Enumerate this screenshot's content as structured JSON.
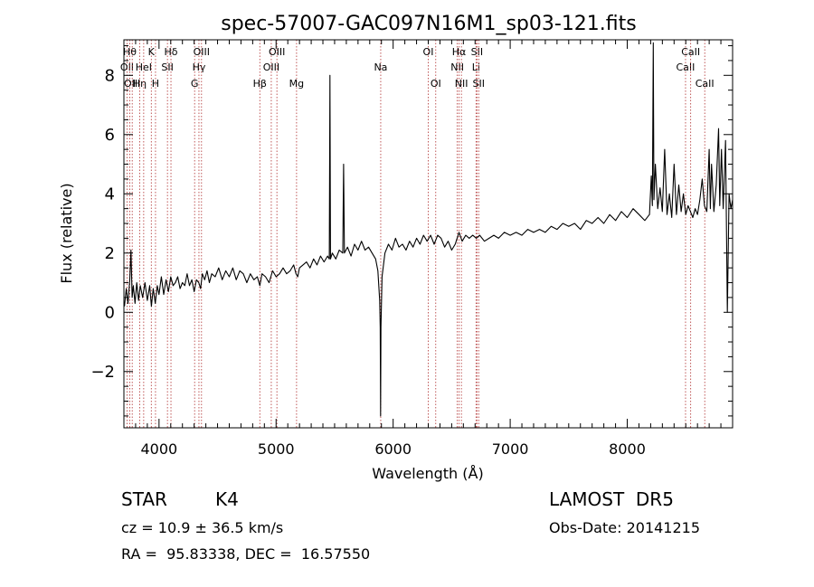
{
  "chart_data": {
    "type": "line",
    "title": "spec-57007-GAC097N16M1_sp03-121.fits",
    "xlabel": "Wavelength (Å)",
    "ylabel": "Flux (relative)",
    "xlim": [
      3700,
      8900
    ],
    "ylim": [
      -3.9,
      9.2
    ],
    "x_ticks": [
      4000,
      5000,
      6000,
      7000,
      8000
    ],
    "x_tick_labels": [
      "4000",
      "5000",
      "6000",
      "7000",
      "8000"
    ],
    "y_ticks": [
      -2,
      0,
      2,
      4,
      6,
      8
    ],
    "y_tick_labels": [
      "−2",
      "0",
      "2",
      "4",
      "6",
      "8"
    ],
    "grid": false,
    "line_color": "#000000",
    "marker_color": "#b03030",
    "series": [
      {
        "points": [
          [
            3705,
            0.2
          ],
          [
            3720,
            0.8
          ],
          [
            3735,
            0.3
          ],
          [
            3750,
            1.1
          ],
          [
            3760,
            2.1
          ],
          [
            3770,
            0.5
          ],
          [
            3780,
            0.9
          ],
          [
            3795,
            0.3
          ],
          [
            3810,
            1.0
          ],
          [
            3825,
            0.4
          ],
          [
            3840,
            0.9
          ],
          [
            3860,
            0.5
          ],
          [
            3880,
            1.0
          ],
          [
            3900,
            0.4
          ],
          [
            3920,
            0.9
          ],
          [
            3935,
            0.2
          ],
          [
            3950,
            0.8
          ],
          [
            3968,
            0.3
          ],
          [
            3985,
            0.9
          ],
          [
            4000,
            0.6
          ],
          [
            4020,
            1.2
          ],
          [
            4040,
            0.6
          ],
          [
            4060,
            1.1
          ],
          [
            4080,
            0.7
          ],
          [
            4100,
            1.2
          ],
          [
            4120,
            0.9
          ],
          [
            4140,
            1.0
          ],
          [
            4160,
            1.2
          ],
          [
            4180,
            0.8
          ],
          [
            4200,
            1.0
          ],
          [
            4220,
            0.9
          ],
          [
            4240,
            1.3
          ],
          [
            4260,
            0.9
          ],
          [
            4280,
            1.1
          ],
          [
            4300,
            0.7
          ],
          [
            4320,
            1.1
          ],
          [
            4340,
            1.0
          ],
          [
            4355,
            0.8
          ],
          [
            4370,
            1.3
          ],
          [
            4390,
            1.1
          ],
          [
            4410,
            1.4
          ],
          [
            4430,
            1.0
          ],
          [
            4450,
            1.3
          ],
          [
            4480,
            1.2
          ],
          [
            4510,
            1.5
          ],
          [
            4540,
            1.1
          ],
          [
            4570,
            1.4
          ],
          [
            4600,
            1.2
          ],
          [
            4630,
            1.5
          ],
          [
            4660,
            1.1
          ],
          [
            4690,
            1.4
          ],
          [
            4720,
            1.3
          ],
          [
            4750,
            1.0
          ],
          [
            4780,
            1.3
          ],
          [
            4810,
            1.1
          ],
          [
            4840,
            1.2
          ],
          [
            4861,
            0.9
          ],
          [
            4880,
            1.3
          ],
          [
            4910,
            1.2
          ],
          [
            4940,
            1.0
          ],
          [
            4970,
            1.4
          ],
          [
            5000,
            1.2
          ],
          [
            5030,
            1.3
          ],
          [
            5060,
            1.5
          ],
          [
            5090,
            1.3
          ],
          [
            5120,
            1.4
          ],
          [
            5150,
            1.6
          ],
          [
            5170,
            1.3
          ],
          [
            5185,
            1.2
          ],
          [
            5200,
            1.5
          ],
          [
            5230,
            1.6
          ],
          [
            5260,
            1.7
          ],
          [
            5290,
            1.5
          ],
          [
            5320,
            1.8
          ],
          [
            5350,
            1.6
          ],
          [
            5380,
            1.9
          ],
          [
            5410,
            1.7
          ],
          [
            5440,
            1.9
          ],
          [
            5455,
            1.8
          ],
          [
            5460,
            8.0
          ],
          [
            5465,
            1.8
          ],
          [
            5480,
            2.0
          ],
          [
            5510,
            1.8
          ],
          [
            5540,
            2.1
          ],
          [
            5570,
            2.0
          ],
          [
            5577,
            5.0
          ],
          [
            5584,
            2.0
          ],
          [
            5610,
            2.2
          ],
          [
            5640,
            1.9
          ],
          [
            5670,
            2.3
          ],
          [
            5700,
            2.1
          ],
          [
            5730,
            2.4
          ],
          [
            5760,
            2.1
          ],
          [
            5790,
            2.2
          ],
          [
            5820,
            2.0
          ],
          [
            5850,
            1.8
          ],
          [
            5870,
            1.4
          ],
          [
            5885,
            0.4
          ],
          [
            5890,
            -0.5
          ],
          [
            5893,
            -3.5
          ],
          [
            5896,
            -0.5
          ],
          [
            5905,
            1.2
          ],
          [
            5930,
            2.0
          ],
          [
            5960,
            2.3
          ],
          [
            5990,
            2.1
          ],
          [
            6020,
            2.5
          ],
          [
            6050,
            2.2
          ],
          [
            6080,
            2.3
          ],
          [
            6110,
            2.1
          ],
          [
            6140,
            2.4
          ],
          [
            6170,
            2.2
          ],
          [
            6200,
            2.5
          ],
          [
            6230,
            2.3
          ],
          [
            6260,
            2.6
          ],
          [
            6290,
            2.4
          ],
          [
            6320,
            2.6
          ],
          [
            6350,
            2.3
          ],
          [
            6380,
            2.6
          ],
          [
            6410,
            2.5
          ],
          [
            6440,
            2.2
          ],
          [
            6470,
            2.4
          ],
          [
            6500,
            2.1
          ],
          [
            6530,
            2.3
          ],
          [
            6563,
            2.7
          ],
          [
            6590,
            2.4
          ],
          [
            6620,
            2.6
          ],
          [
            6650,
            2.5
          ],
          [
            6680,
            2.6
          ],
          [
            6710,
            2.5
          ],
          [
            6740,
            2.6
          ],
          [
            6780,
            2.4
          ],
          [
            6820,
            2.5
          ],
          [
            6860,
            2.6
          ],
          [
            6900,
            2.5
          ],
          [
            6950,
            2.7
          ],
          [
            7000,
            2.6
          ],
          [
            7050,
            2.7
          ],
          [
            7100,
            2.6
          ],
          [
            7150,
            2.8
          ],
          [
            7200,
            2.7
          ],
          [
            7250,
            2.8
          ],
          [
            7300,
            2.7
          ],
          [
            7350,
            2.9
          ],
          [
            7400,
            2.8
          ],
          [
            7450,
            3.0
          ],
          [
            7500,
            2.9
          ],
          [
            7550,
            3.0
          ],
          [
            7600,
            2.8
          ],
          [
            7650,
            3.1
          ],
          [
            7700,
            3.0
          ],
          [
            7750,
            3.2
          ],
          [
            7800,
            3.0
          ],
          [
            7850,
            3.3
          ],
          [
            7900,
            3.1
          ],
          [
            7950,
            3.4
          ],
          [
            8000,
            3.2
          ],
          [
            8050,
            3.5
          ],
          [
            8100,
            3.3
          ],
          [
            8150,
            3.1
          ],
          [
            8190,
            3.3
          ],
          [
            8205,
            4.6
          ],
          [
            8215,
            3.6
          ],
          [
            8222,
            9.1
          ],
          [
            8228,
            3.8
          ],
          [
            8240,
            5.0
          ],
          [
            8260,
            3.5
          ],
          [
            8280,
            4.2
          ],
          [
            8300,
            3.4
          ],
          [
            8320,
            5.5
          ],
          [
            8340,
            3.3
          ],
          [
            8360,
            4.0
          ],
          [
            8380,
            3.2
          ],
          [
            8400,
            5.0
          ],
          [
            8420,
            3.3
          ],
          [
            8440,
            4.3
          ],
          [
            8460,
            3.4
          ],
          [
            8480,
            4.0
          ],
          [
            8500,
            3.3
          ],
          [
            8520,
            3.6
          ],
          [
            8540,
            3.4
          ],
          [
            8560,
            3.2
          ],
          [
            8580,
            3.5
          ],
          [
            8600,
            3.3
          ],
          [
            8620,
            3.8
          ],
          [
            8640,
            4.5
          ],
          [
            8660,
            3.6
          ],
          [
            8680,
            3.4
          ],
          [
            8700,
            5.5
          ],
          [
            8710,
            3.5
          ],
          [
            8720,
            5.0
          ],
          [
            8740,
            3.4
          ],
          [
            8760,
            4.3
          ],
          [
            8780,
            6.2
          ],
          [
            8790,
            3.6
          ],
          [
            8805,
            5.5
          ],
          [
            8820,
            3.5
          ],
          [
            8840,
            5.8
          ],
          [
            8855,
            0.0
          ],
          [
            8870,
            4.0
          ],
          [
            8885,
            3.5
          ],
          [
            8900,
            3.8
          ]
        ]
      }
    ],
    "line_markers": [
      {
        "wl": 3727,
        "label": "OII",
        "row": 1
      },
      {
        "wl": 3750,
        "label": "Hθ",
        "row": 0
      },
      {
        "wl": 3771,
        "label": "OIII",
        "row": 2
      },
      {
        "wl": 3835,
        "label": "Hη",
        "row": 2
      },
      {
        "wl": 3869,
        "label": "HeI",
        "row": 1
      },
      {
        "wl": 3934,
        "label": "K",
        "row": 0
      },
      {
        "wl": 3970,
        "label": "H",
        "row": 2
      },
      {
        "wl": 4072,
        "label": "SII",
        "row": 1
      },
      {
        "wl": 4102,
        "label": "Hδ",
        "row": 0
      },
      {
        "wl": 4304,
        "label": "G",
        "row": 2
      },
      {
        "wl": 4341,
        "label": "Hγ",
        "row": 1
      },
      {
        "wl": 4363,
        "label": "OIII",
        "row": 0
      },
      {
        "wl": 4861,
        "label": "Hβ",
        "row": 2
      },
      {
        "wl": 4959,
        "label": "OIII",
        "row": 1
      },
      {
        "wl": 5007,
        "label": "OIII",
        "row": 0
      },
      {
        "wl": 5175,
        "label": "Mg",
        "row": 2
      },
      {
        "wl": 5894,
        "label": "Na",
        "row": 1
      },
      {
        "wl": 6300,
        "label": "OI",
        "row": 0
      },
      {
        "wl": 6364,
        "label": "OI",
        "row": 2
      },
      {
        "wl": 6548,
        "label": "NII",
        "row": 1
      },
      {
        "wl": 6563,
        "label": "Hα",
        "row": 0
      },
      {
        "wl": 6583,
        "label": "NII",
        "row": 2
      },
      {
        "wl": 6708,
        "label": "Li",
        "row": 1
      },
      {
        "wl": 6716,
        "label": "SII",
        "row": 0
      },
      {
        "wl": 6731,
        "label": "SII",
        "row": 2
      },
      {
        "wl": 8498,
        "label": "CaII",
        "row": 1
      },
      {
        "wl": 8542,
        "label": "CaII",
        "row": 0
      },
      {
        "wl": 8662,
        "label": "CaII",
        "row": 2
      }
    ]
  },
  "info": {
    "object_type": "STAR",
    "subclass": "K4",
    "survey": "LAMOST  DR5",
    "cz": "cz = 10.9 ± 36.5 km/s",
    "obs_date": "Obs-Date: 20141215",
    "coords": "RA =  95.83338, DEC =  16.57550"
  }
}
